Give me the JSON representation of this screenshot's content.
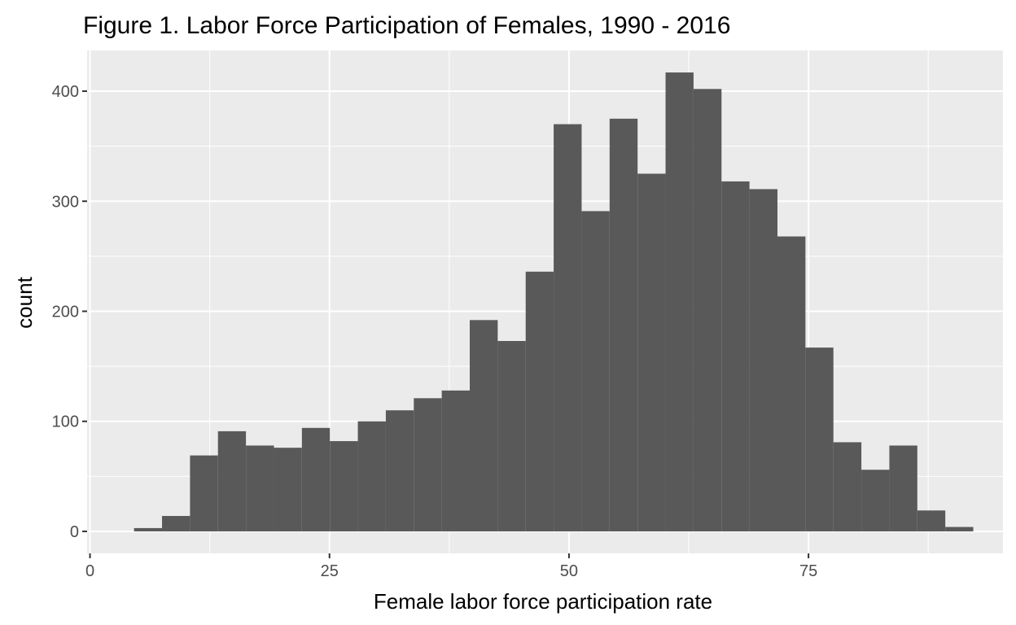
{
  "chart_data": {
    "type": "bar",
    "title": "Figure 1. Labor Force Participation of Females, 1990 - 2016",
    "xlabel": "Female labor force participation rate",
    "ylabel": "count",
    "xlim": [
      -0.3,
      95.3
    ],
    "ylim": [
      -20,
      437
    ],
    "x_ticks": [
      0,
      25,
      50,
      75
    ],
    "y_ticks": [
      0,
      100,
      200,
      300,
      400
    ],
    "bin_width": 2.92,
    "bins": [
      {
        "x0": 4.6,
        "count": 3
      },
      {
        "x0": 7.52,
        "count": 14
      },
      {
        "x0": 10.44,
        "count": 69
      },
      {
        "x0": 13.36,
        "count": 91
      },
      {
        "x0": 16.28,
        "count": 78
      },
      {
        "x0": 19.2,
        "count": 76
      },
      {
        "x0": 22.12,
        "count": 94
      },
      {
        "x0": 25.04,
        "count": 82
      },
      {
        "x0": 27.96,
        "count": 100
      },
      {
        "x0": 30.88,
        "count": 110
      },
      {
        "x0": 33.8,
        "count": 121
      },
      {
        "x0": 36.72,
        "count": 128
      },
      {
        "x0": 39.64,
        "count": 192
      },
      {
        "x0": 42.56,
        "count": 173
      },
      {
        "x0": 45.48,
        "count": 236
      },
      {
        "x0": 48.4,
        "count": 370
      },
      {
        "x0": 51.32,
        "count": 291
      },
      {
        "x0": 54.24,
        "count": 375
      },
      {
        "x0": 57.16,
        "count": 325
      },
      {
        "x0": 60.08,
        "count": 417
      },
      {
        "x0": 63.0,
        "count": 402
      },
      {
        "x0": 65.92,
        "count": 318
      },
      {
        "x0": 68.84,
        "count": 311
      },
      {
        "x0": 71.76,
        "count": 268
      },
      {
        "x0": 74.68,
        "count": 167
      },
      {
        "x0": 77.6,
        "count": 81
      },
      {
        "x0": 80.52,
        "count": 56
      },
      {
        "x0": 83.44,
        "count": 78
      },
      {
        "x0": 86.36,
        "count": 19
      },
      {
        "x0": 89.28,
        "count": 4
      }
    ],
    "grid": true,
    "legend": "none",
    "colors": {
      "panel_background": "#ebebeb",
      "grid": "#ffffff",
      "bar_fill": "#595959",
      "tick_text": "#4d4d4d",
      "tick_mark": "#333333"
    }
  }
}
